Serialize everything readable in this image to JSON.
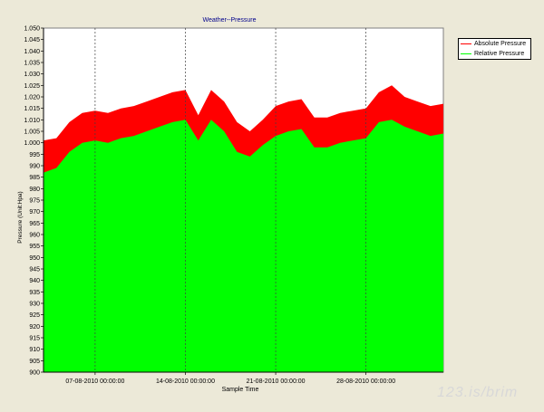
{
  "chart_data": {
    "type": "area",
    "title": "Weather--Pressure",
    "xlabel": "Sample Time",
    "ylabel": "Pressure (Unit:Hpa)",
    "ylim": [
      900,
      1050
    ],
    "yticks": [
      900,
      905,
      910,
      915,
      920,
      925,
      930,
      935,
      940,
      945,
      950,
      955,
      960,
      965,
      970,
      975,
      980,
      985,
      990,
      995,
      1000,
      1005,
      1010,
      1015,
      1020,
      1025,
      1030,
      1035,
      1040,
      1045,
      1050
    ],
    "xlim": [
      "2010-08-03",
      "2010-09-03"
    ],
    "xticks": [
      "07-08-2010 00:00:00",
      "14-08-2010 00:00:00",
      "21-08-2010 00:00:00",
      "28-08-2010 00:00:00"
    ],
    "x": [
      "2010-08-03",
      "2010-08-04",
      "2010-08-05",
      "2010-08-06",
      "2010-08-07",
      "2010-08-08",
      "2010-08-09",
      "2010-08-10",
      "2010-08-11",
      "2010-08-12",
      "2010-08-13",
      "2010-08-14",
      "2010-08-15",
      "2010-08-16",
      "2010-08-17",
      "2010-08-18",
      "2010-08-19",
      "2010-08-20",
      "2010-08-21",
      "2010-08-22",
      "2010-08-23",
      "2010-08-24",
      "2010-08-25",
      "2010-08-26",
      "2010-08-27",
      "2010-08-28",
      "2010-08-29",
      "2010-08-30",
      "2010-08-31",
      "2010-09-01",
      "2010-09-02",
      "2010-09-03"
    ],
    "series": [
      {
        "name": "Absolute Pressure",
        "color": "#ff0000",
        "values": [
          1001,
          1002,
          1009,
          1013,
          1014,
          1013,
          1015,
          1016,
          1018,
          1020,
          1022,
          1023,
          1012,
          1023,
          1018,
          1009,
          1005,
          1010,
          1016,
          1018,
          1019,
          1011,
          1011,
          1013,
          1014,
          1015,
          1022,
          1025,
          1020,
          1018,
          1016,
          1017
        ]
      },
      {
        "name": "Relative Pressure",
        "color": "#00ff00",
        "values": [
          987,
          989,
          996,
          1000,
          1001,
          1000,
          1002,
          1003,
          1005,
          1007,
          1009,
          1010,
          1001,
          1010,
          1005,
          996,
          994,
          999,
          1003,
          1005,
          1006,
          998,
          998,
          1000,
          1001,
          1002,
          1009,
          1010,
          1007,
          1005,
          1003,
          1004
        ]
      }
    ],
    "grid": true,
    "legend": "top-right"
  },
  "watermark": "123.is/brim"
}
